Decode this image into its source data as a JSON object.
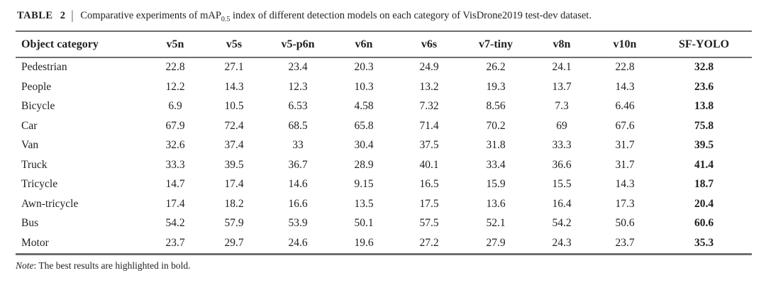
{
  "caption": {
    "label": "TABLE 2",
    "separator": "|",
    "text_before_subscript": "Comparative experiments of mAP",
    "subscript": "0.5",
    "text_after_subscript": " index of different detection models on each category of VisDrone2019 test-dev dataset."
  },
  "table": {
    "columns": [
      "Object category",
      "v5n",
      "v5s",
      "v5-p6n",
      "v6n",
      "v6s",
      "v7-tiny",
      "v8n",
      "v10n",
      "SF-YOLO"
    ],
    "bold_column": "SF-YOLO",
    "rows": [
      {
        "category": "Pedestrian",
        "values": [
          "22.8",
          "27.1",
          "23.4",
          "20.3",
          "24.9",
          "26.2",
          "24.1",
          "22.8",
          "32.8"
        ]
      },
      {
        "category": "People",
        "values": [
          "12.2",
          "14.3",
          "12.3",
          "10.3",
          "13.2",
          "19.3",
          "13.7",
          "14.3",
          "23.6"
        ]
      },
      {
        "category": "Bicycle",
        "values": [
          "6.9",
          "10.5",
          "6.53",
          "4.58",
          "7.32",
          "8.56",
          "7.3",
          "6.46",
          "13.8"
        ]
      },
      {
        "category": "Car",
        "values": [
          "67.9",
          "72.4",
          "68.5",
          "65.8",
          "71.4",
          "70.2",
          "69",
          "67.6",
          "75.8"
        ]
      },
      {
        "category": "Van",
        "values": [
          "32.6",
          "37.4",
          "33",
          "30.4",
          "37.5",
          "31.8",
          "33.3",
          "31.7",
          "39.5"
        ]
      },
      {
        "category": "Truck",
        "values": [
          "33.3",
          "39.5",
          "36.7",
          "28.9",
          "40.1",
          "33.4",
          "36.6",
          "31.7",
          "41.4"
        ]
      },
      {
        "category": "Tricycle",
        "values": [
          "14.7",
          "17.4",
          "14.6",
          "9.15",
          "16.5",
          "15.9",
          "15.5",
          "14.3",
          "18.7"
        ]
      },
      {
        "category": "Awn-tricycle",
        "values": [
          "17.4",
          "18.2",
          "16.6",
          "13.5",
          "17.5",
          "13.6",
          "16.4",
          "17.3",
          "20.4"
        ]
      },
      {
        "category": "Bus",
        "values": [
          "54.2",
          "57.9",
          "53.9",
          "50.1",
          "57.5",
          "52.1",
          "54.2",
          "50.6",
          "60.6"
        ]
      },
      {
        "category": "Motor",
        "values": [
          "23.7",
          "29.7",
          "24.6",
          "19.6",
          "27.2",
          "27.9",
          "24.3",
          "23.7",
          "35.3"
        ]
      }
    ]
  },
  "note": {
    "label": "Note",
    "text": ": The best results are highlighted in bold."
  },
  "colors": {
    "text": "#1f1f1f",
    "rule": "#6e6e6e",
    "background": "#ffffff"
  }
}
